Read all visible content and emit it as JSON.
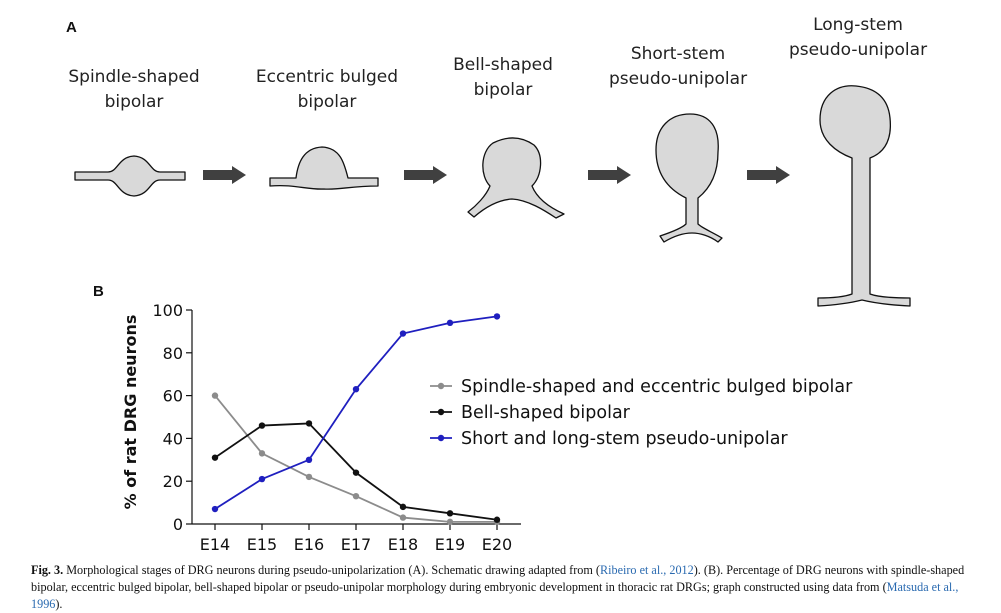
{
  "panel_a": {
    "letter": "A",
    "stages": [
      {
        "line1": "Spindle-shaped",
        "line2": "bipolar"
      },
      {
        "line1": "Eccentric bulged",
        "line2": "bipolar"
      },
      {
        "line1": "Bell-shaped",
        "line2": "bipolar"
      },
      {
        "line1": "Short-stem",
        "line2": "pseudo-unipolar"
      },
      {
        "line1": "Long-stem",
        "line2": "pseudo-unipolar"
      }
    ],
    "cell_fill": "#d9d9d9",
    "arrow_color": "#404040"
  },
  "panel_b": {
    "letter": "B"
  },
  "chart_data": {
    "type": "line",
    "categories": [
      "E14",
      "E15",
      "E16",
      "E17",
      "E18",
      "E19",
      "E20"
    ],
    "ylabel": "% of rat DRG neurons",
    "xlabel": "",
    "ylim": [
      0,
      100
    ],
    "yticks": [
      0,
      20,
      40,
      60,
      80,
      100
    ],
    "legend_position": "right",
    "grid": false,
    "series": [
      {
        "name": "Spindle-shaped and eccentric bulged bipolar",
        "color": "#8c8c8c",
        "values": [
          60,
          33,
          22,
          13,
          3,
          1,
          1
        ]
      },
      {
        "name": "Bell-shaped bipolar",
        "color": "#111111",
        "values": [
          31,
          46,
          47,
          24,
          8,
          5,
          2
        ]
      },
      {
        "name": "Short and long-stem pseudo-unipolar",
        "color": "#1f1fbf",
        "values": [
          7,
          21,
          30,
          63,
          89,
          94,
          97
        ]
      }
    ]
  },
  "caption": {
    "fig_label": "Fig. 3.",
    "text_1": " Morphological stages of DRG neurons during pseudo-unipolarization (A). Schematic drawing adapted from (",
    "cite_1": "Ribeiro et al., 2012",
    "text_2": "). (B). Percentage of DRG neurons with spindle-shaped bipolar, eccentric bulged bipolar, bell-shaped bipolar or pseudo-unipolar morphology during embryonic development in thoracic rat DRGs; graph constructed using data from (",
    "cite_2": "Matsuda et al., 1996",
    "text_3": ")."
  }
}
